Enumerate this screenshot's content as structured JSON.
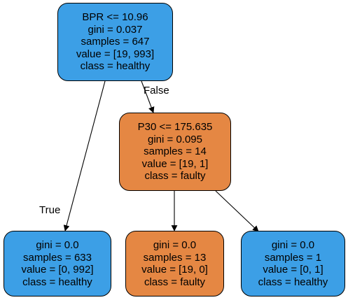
{
  "colors": {
    "class_healthy": "#3c9fe6",
    "class_faulty": "#e58743",
    "edge": "#000000"
  },
  "nodes": {
    "root": {
      "split": "BPR <= 10.96",
      "gini": "gini = 0.037",
      "samples": "samples = 647",
      "value": "value = [19, 993]",
      "class": "class = healthy"
    },
    "right": {
      "split": "P30 <= 175.635",
      "gini": "gini = 0.095",
      "samples": "samples = 14",
      "value": "value = [19, 1]",
      "class": "class = faulty"
    },
    "leaf_left": {
      "gini": "gini = 0.0",
      "samples": "samples = 633",
      "value": "value = [0, 992]",
      "class": "class = healthy"
    },
    "leaf_mid": {
      "gini": "gini = 0.0",
      "samples": "samples = 13",
      "value": "value = [19, 0]",
      "class": "class = faulty"
    },
    "leaf_right": {
      "gini": "gini = 0.0",
      "samples": "samples = 1",
      "value": "value = [0, 1]",
      "class": "class = healthy"
    }
  },
  "edges": {
    "true_label": "True",
    "false_label": "False"
  }
}
